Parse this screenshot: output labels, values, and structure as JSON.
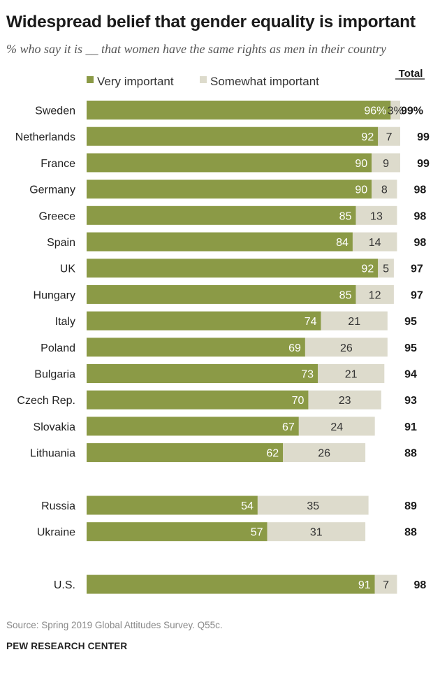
{
  "header": {
    "title": "Widespread belief that gender equality is important",
    "subtitle": "% who say it is __ that women have the same rights as men in their country"
  },
  "footer": {
    "source": "Source: Spring 2019 Global Attitudes Survey. Q55c.",
    "brand": "PEW RESEARCH CENTER"
  },
  "colors": {
    "very": "#8b9a46",
    "somewhat": "#dddbcc",
    "total_text": "#1a1a1a"
  },
  "chart_data": {
    "type": "bar",
    "orientation": "horizontal",
    "stacked": true,
    "legend": [
      "Very important",
      "Somewhat important"
    ],
    "total_label": "Total",
    "groups": [
      {
        "rows": [
          {
            "country": "Sweden",
            "very": 96,
            "somewhat": 3,
            "total": 99,
            "very_label": "96%",
            "somewhat_label": "3%",
            "total_label": "99%"
          },
          {
            "country": "Netherlands",
            "very": 92,
            "somewhat": 7,
            "total": 99
          },
          {
            "country": "France",
            "very": 90,
            "somewhat": 9,
            "total": 99
          },
          {
            "country": "Germany",
            "very": 90,
            "somewhat": 8,
            "total": 98
          },
          {
            "country": "Greece",
            "very": 85,
            "somewhat": 13,
            "total": 98
          },
          {
            "country": "Spain",
            "very": 84,
            "somewhat": 14,
            "total": 98
          },
          {
            "country": "UK",
            "very": 92,
            "somewhat": 5,
            "total": 97
          },
          {
            "country": "Hungary",
            "very": 85,
            "somewhat": 12,
            "total": 97
          },
          {
            "country": "Italy",
            "very": 74,
            "somewhat": 21,
            "total": 95
          },
          {
            "country": "Poland",
            "very": 69,
            "somewhat": 26,
            "total": 95
          },
          {
            "country": "Bulgaria",
            "very": 73,
            "somewhat": 21,
            "total": 94
          },
          {
            "country": "Czech Rep.",
            "very": 70,
            "somewhat": 23,
            "total": 93
          },
          {
            "country": "Slovakia",
            "very": 67,
            "somewhat": 24,
            "total": 91
          },
          {
            "country": "Lithuania",
            "very": 62,
            "somewhat": 26,
            "total": 88
          }
        ]
      },
      {
        "rows": [
          {
            "country": "Russia",
            "very": 54,
            "somewhat": 35,
            "total": 89
          },
          {
            "country": "Ukraine",
            "very": 57,
            "somewhat": 31,
            "total": 88
          }
        ]
      },
      {
        "rows": [
          {
            "country": "U.S.",
            "very": 91,
            "somewhat": 7,
            "total": 98
          }
        ]
      }
    ],
    "xlim": [
      0,
      100
    ]
  }
}
